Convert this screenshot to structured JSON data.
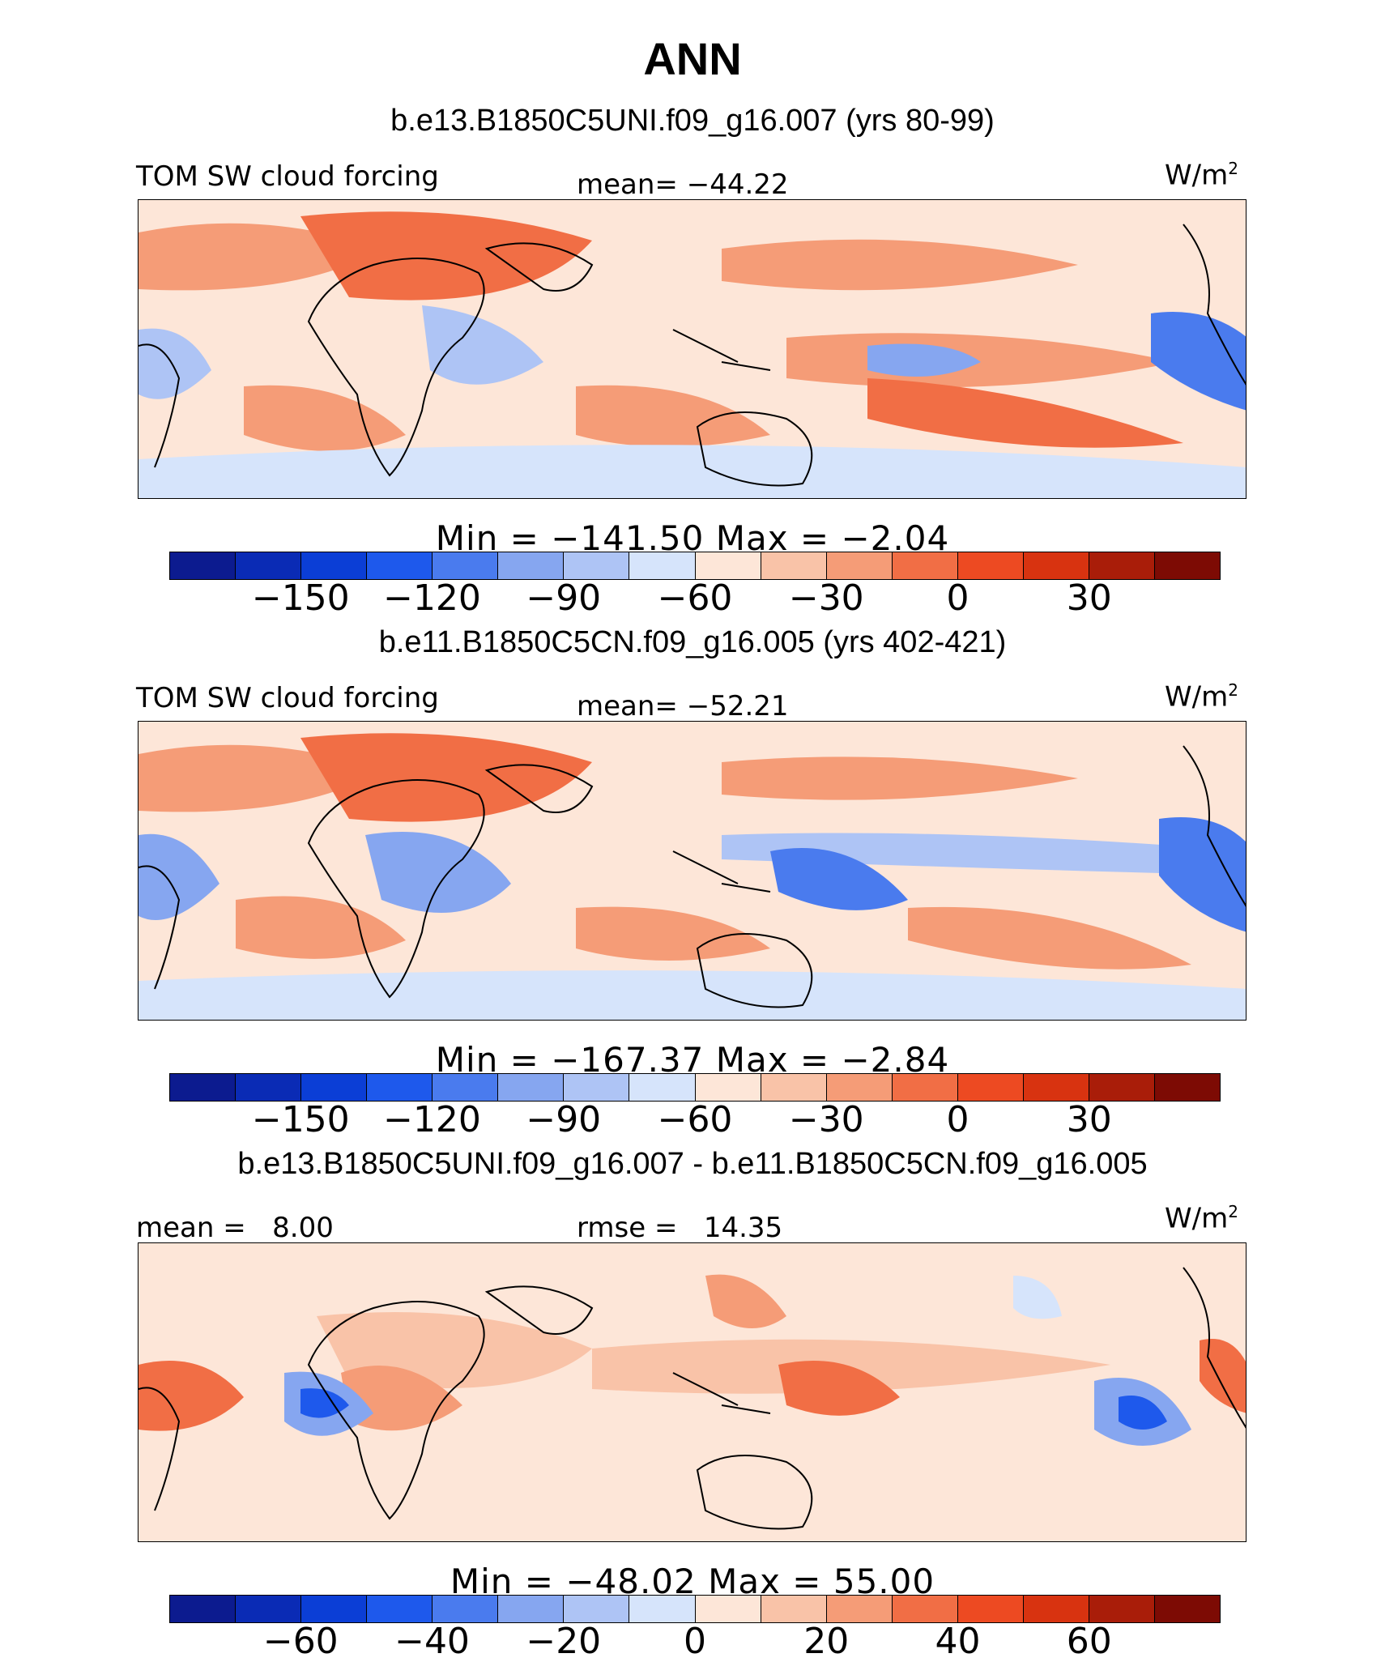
{
  "figure": {
    "title": "ANN"
  },
  "colors": [
    "#0c1b8f",
    "#0a2bb5",
    "#0b3ed6",
    "#1e59ec",
    "#4a7bee",
    "#86a6f0",
    "#aec4f5",
    "#d6e4fb",
    "#fde6d8",
    "#f9c3a8",
    "#f59c77",
    "#f16e45",
    "#ed4a22",
    "#d83310",
    "#a91d09",
    "#7d0b04"
  ],
  "chart_data": [
    {
      "type": "heatmap",
      "title": "b.e13.B1850C5UNI.f09_g16.007 (yrs 80-99)",
      "left_label": "TOM SW cloud forcing",
      "center_label": "mean= −44.22",
      "units_base": "W/m",
      "units_sup": "2",
      "stats": {
        "min_label": "Min",
        "min": "−141.50",
        "max_label": "Max",
        "max": "−2.04"
      },
      "min_value": -141.5,
      "max_value": -2.04,
      "mean_value": -44.22,
      "colorbar_levels": [
        -165,
        -150,
        -135,
        -120,
        -105,
        -90,
        -75,
        -60,
        -45,
        -30,
        -15,
        0,
        15,
        30,
        45
      ],
      "colorbar_ticks": [
        "−150",
        "−120",
        "−90",
        "−60",
        "−30",
        "0",
        "30"
      ],
      "colorbar_tick_index": [
        1,
        3,
        5,
        7,
        9,
        11,
        13
      ]
    },
    {
      "type": "heatmap",
      "title": "b.e11.B1850C5CN.f09_g16.005 (yrs 402-421)",
      "left_label": "TOM SW cloud forcing",
      "center_label": "mean= −52.21",
      "units_base": "W/m",
      "units_sup": "2",
      "stats": {
        "min_label": "Min",
        "min": "−167.37",
        "max_label": "Max",
        "max": "−2.84"
      },
      "min_value": -167.37,
      "max_value": -2.84,
      "mean_value": -52.21,
      "colorbar_levels": [
        -165,
        -150,
        -135,
        -120,
        -105,
        -90,
        -75,
        -60,
        -45,
        -30,
        -15,
        0,
        15,
        30,
        45
      ],
      "colorbar_ticks": [
        "−150",
        "−120",
        "−90",
        "−60",
        "−30",
        "0",
        "30"
      ],
      "colorbar_tick_index": [
        1,
        3,
        5,
        7,
        9,
        11,
        13
      ]
    },
    {
      "type": "heatmap",
      "title": "b.e13.B1850C5UNI.f09_g16.007 - b.e11.B1850C5CN.f09_g16.005",
      "left_label": "mean =   8.00",
      "center_label": "rmse =   14.35",
      "units_base": "W/m",
      "units_sup": "2",
      "stats": {
        "min_label": "Min",
        "min": "−48.02",
        "max_label": "Max",
        "max": "55.00"
      },
      "min_value": -48.02,
      "max_value": 55.0,
      "mean_value": 8.0,
      "rmse_value": 14.35,
      "colorbar_levels": [
        -70,
        -60,
        -50,
        -40,
        -30,
        -20,
        -10,
        0,
        10,
        20,
        30,
        40,
        50,
        60,
        70
      ],
      "colorbar_ticks": [
        "−60",
        "−40",
        "−20",
        "0",
        "20",
        "40",
        "60"
      ],
      "colorbar_tick_index": [
        1,
        3,
        5,
        7,
        9,
        11,
        13
      ]
    }
  ]
}
